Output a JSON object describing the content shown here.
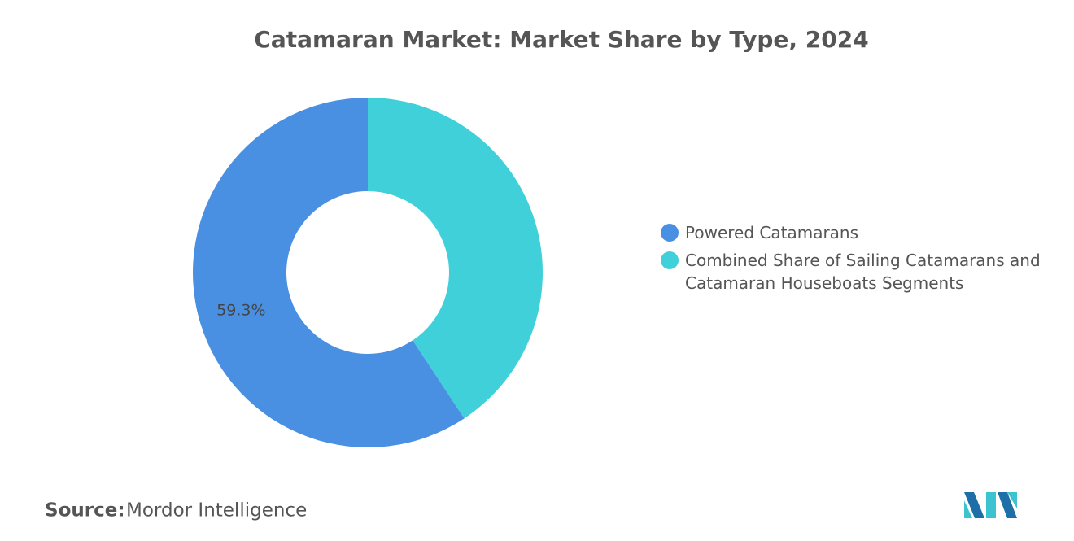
{
  "chart_data": {
    "type": "donut",
    "title": "Catamaran Market: Market Share by Type, 2024",
    "categories": [
      "Powered Catamarans",
      "Combined Share of Sailing Catamarans and Catamaran Houseboats Segments"
    ],
    "values": [
      59.3,
      40.7
    ],
    "value_labels": [
      "59.3%",
      null
    ],
    "colors": [
      "#4a90e2",
      "#40d0da"
    ],
    "source_label": "Source:",
    "source": "Mordor Intelligence"
  }
}
